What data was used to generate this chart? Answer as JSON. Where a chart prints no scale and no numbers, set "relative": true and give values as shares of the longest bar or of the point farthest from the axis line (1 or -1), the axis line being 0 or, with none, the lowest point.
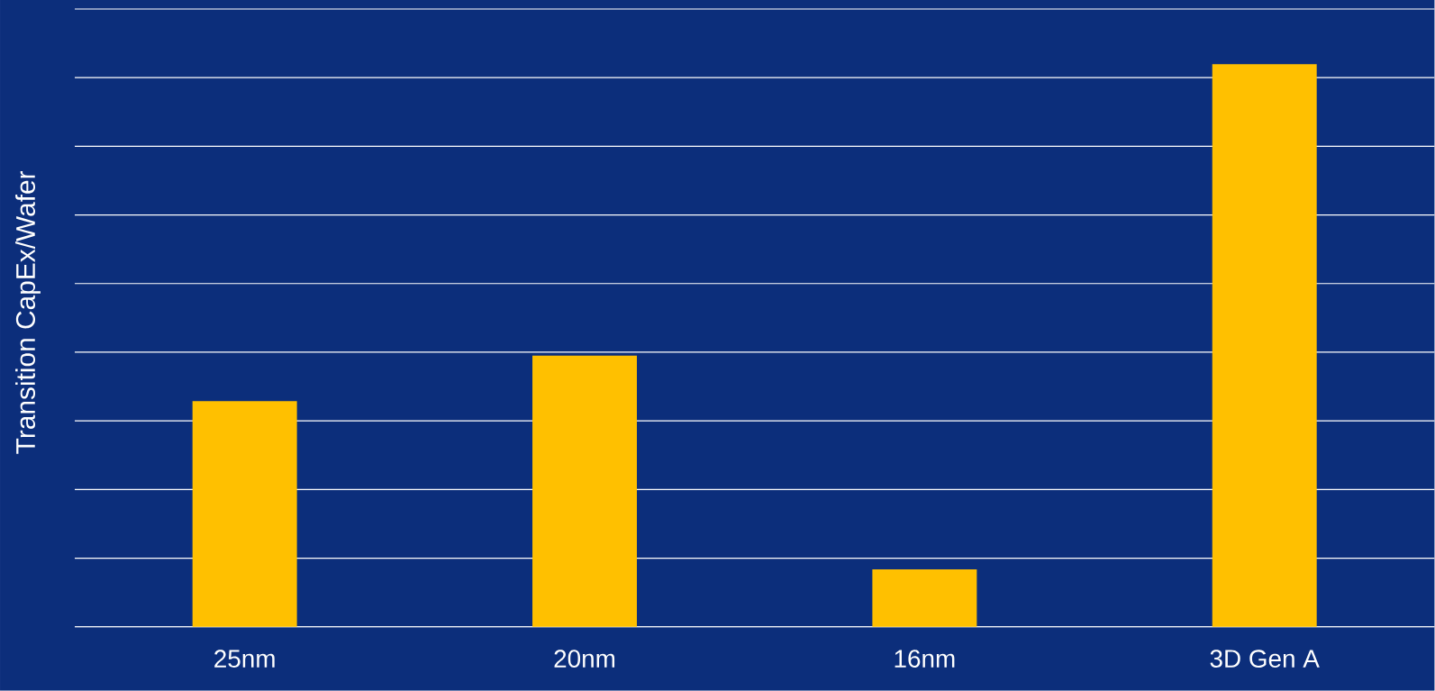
{
  "chart_data": {
    "type": "bar",
    "ylabel": "Transition CapEx/Wafer",
    "relative": true,
    "categories": [
      "25nm",
      "20nm",
      "16nm",
      "3D Gen A"
    ],
    "values": [
      0.401,
      0.482,
      0.102,
      1
    ],
    "color": "#ffc000",
    "grid": "y",
    "tick_labels": "x"
  }
}
